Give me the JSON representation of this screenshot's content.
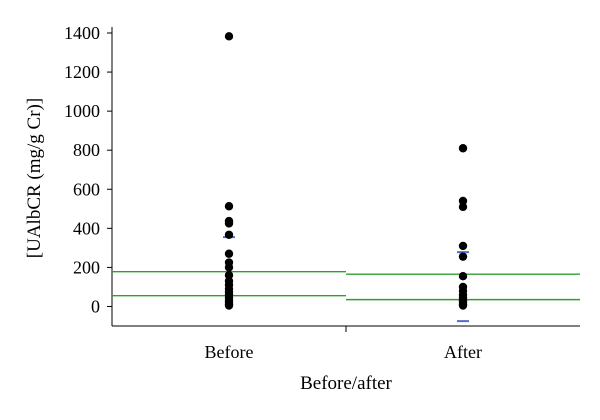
{
  "chart_data": {
    "type": "scatter",
    "title": "",
    "xlabel": "Before/after",
    "ylabel": "[UAlbCR (mg/g Cr)]",
    "ylim": [
      -100,
      1400
    ],
    "yticks": [
      0,
      200,
      400,
      600,
      800,
      1000,
      1200,
      1400
    ],
    "categories": [
      "Before",
      "After"
    ],
    "grid": false,
    "legend": "none",
    "colors": {
      "points": "#000000",
      "lines": "#2ca02c",
      "marks": "#4a6fd1"
    },
    "groups": [
      {
        "category": "Before",
        "values": [
          1383,
          513,
          437,
          425,
          367,
          270,
          225,
          200,
          160,
          130,
          110,
          90,
          75,
          60,
          45,
          30,
          20,
          10,
          5
        ],
        "lines": [
          178,
          55
        ],
        "marks": [
          355
        ]
      },
      {
        "category": "After",
        "values": [
          810,
          540,
          510,
          310,
          255,
          155,
          100,
          80,
          60,
          45,
          30,
          20,
          10,
          5
        ],
        "lines": [
          165,
          35
        ],
        "marks": [
          278,
          -75
        ]
      }
    ]
  }
}
